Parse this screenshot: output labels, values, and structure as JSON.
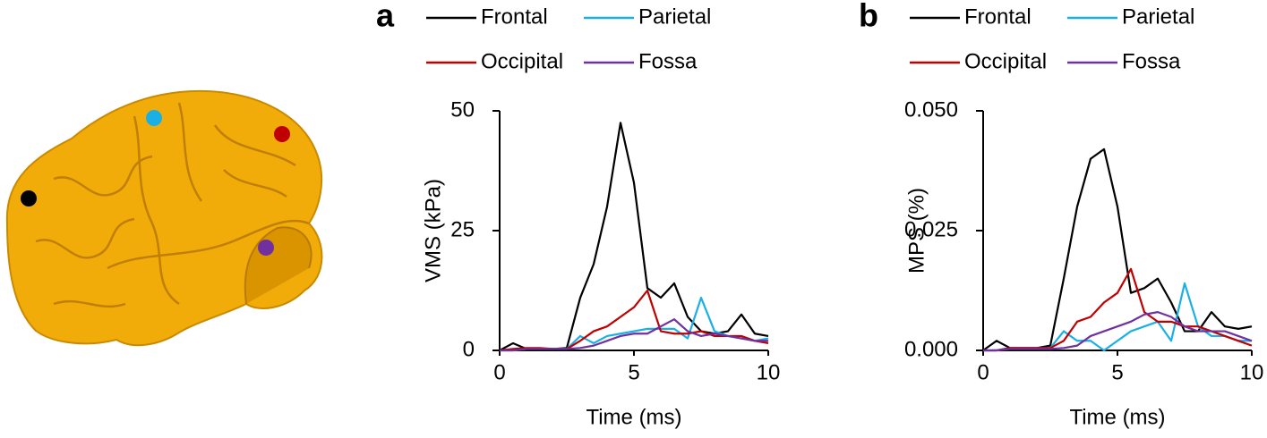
{
  "chart_data": [
    {
      "type": "line",
      "panel": "a",
      "ylabel": "VMS (kPa)",
      "xlabel": "Time (ms)",
      "xlim": [
        0,
        10
      ],
      "xticks": [
        0,
        5,
        10
      ],
      "ylim": [
        0,
        50
      ],
      "yticks": [
        0,
        25,
        50
      ],
      "x": [
        0,
        0.5,
        1,
        1.5,
        2,
        2.5,
        3,
        3.5,
        4,
        4.5,
        5,
        5.5,
        6,
        6.5,
        7,
        7.5,
        8,
        8.5,
        9,
        9.5,
        10
      ],
      "series": [
        {
          "name": "Frontal",
          "color": "#000000",
          "values": [
            0,
            1.5,
            0.3,
            0.3,
            0.3,
            0.5,
            11,
            18,
            30,
            47.5,
            35,
            13,
            11,
            14,
            7,
            4,
            3.5,
            4,
            7.5,
            3.5,
            3
          ]
        },
        {
          "name": "Parietal",
          "color": "#1ab0e6",
          "values": [
            0,
            0,
            0.3,
            0.3,
            0.3,
            0.3,
            3,
            1.5,
            3,
            3.5,
            4,
            4.5,
            4.5,
            4.5,
            2.5,
            11,
            4,
            3,
            2.5,
            2,
            2.5
          ]
        },
        {
          "name": "Occipital",
          "color": "#c00000",
          "values": [
            0,
            0.3,
            0.5,
            0.5,
            0.3,
            0.3,
            2,
            4,
            5,
            7,
            9,
            12.5,
            4,
            3.5,
            3.5,
            4,
            3,
            3,
            3,
            2,
            1.5
          ]
        },
        {
          "name": "Fossa",
          "color": "#7030a0",
          "values": [
            0,
            0,
            0.3,
            0.3,
            0.3,
            0.3,
            0.5,
            1,
            2,
            3,
            3.5,
            3.5,
            5,
            6.5,
            4,
            3,
            3.5,
            3,
            2.5,
            2,
            2
          ]
        }
      ]
    },
    {
      "type": "line",
      "panel": "b",
      "ylabel": "MPS (%)",
      "xlabel": "Time (ms)",
      "xlim": [
        0,
        10
      ],
      "xticks": [
        0,
        5,
        10
      ],
      "ylim": [
        0,
        0.05
      ],
      "yticks": [
        {
          "value": 0,
          "label": "0.000"
        },
        {
          "value": 0.025,
          "label": "0.025"
        },
        {
          "value": 0.05,
          "label": "0.050"
        }
      ],
      "x": [
        0,
        0.5,
        1,
        1.5,
        2,
        2.5,
        3,
        3.5,
        4,
        4.5,
        5,
        5.5,
        6,
        6.5,
        7,
        7.5,
        8,
        8.5,
        9,
        9.5,
        10
      ],
      "series": [
        {
          "name": "Frontal",
          "color": "#000000",
          "values": [
            0,
            0.002,
            0.0005,
            0.0005,
            0.0005,
            0.001,
            0.015,
            0.03,
            0.04,
            0.042,
            0.03,
            0.012,
            0.013,
            0.015,
            0.01,
            0.004,
            0.004,
            0.008,
            0.005,
            0.0045,
            0.005
          ]
        },
        {
          "name": "Parietal",
          "color": "#1ab0e6",
          "values": [
            0,
            0,
            0.0005,
            0.0005,
            0.0005,
            0.0005,
            0.004,
            0.002,
            0.002,
            0,
            0.002,
            0.004,
            0.005,
            0.006,
            0.002,
            0.014,
            0.005,
            0.003,
            0.003,
            0.002,
            0.002
          ]
        },
        {
          "name": "Occipital",
          "color": "#c00000",
          "values": [
            0,
            0,
            0.0005,
            0.0005,
            0.0005,
            0.0005,
            0.002,
            0.006,
            0.007,
            0.01,
            0.012,
            0.017,
            0.008,
            0.006,
            0.006,
            0.005,
            0.005,
            0.004,
            0.003,
            0.002,
            0.001
          ]
        },
        {
          "name": "Fossa",
          "color": "#7030a0",
          "values": [
            0,
            0,
            0.0003,
            0.0003,
            0.0003,
            0.0003,
            0.0005,
            0.001,
            0.003,
            0.004,
            0.005,
            0.006,
            0.0075,
            0.008,
            0.007,
            0.005,
            0.004,
            0.004,
            0.004,
            0.003,
            0.002
          ]
        }
      ]
    }
  ]
}
